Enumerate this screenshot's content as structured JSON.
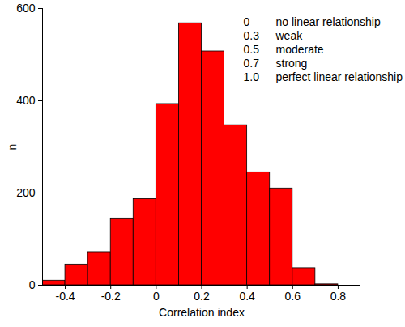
{
  "chart_data": {
    "type": "histogram",
    "x_label": "Correlation index",
    "y_label": "n",
    "bins": [
      -0.5,
      -0.4,
      -0.3,
      -0.2,
      -0.1,
      0,
      0.1,
      0.2,
      0.3,
      0.4,
      0.5,
      0.6,
      0.7,
      0.8
    ],
    "values": [
      10,
      45,
      72,
      145,
      187,
      393,
      568,
      507,
      347,
      245,
      210,
      37,
      2
    ],
    "color": "#ff0000",
    "xlim": [
      -0.5,
      0.9
    ],
    "xticks": [
      -0.4,
      -0.2,
      0,
      0.2,
      0.4,
      0.6,
      0.8
    ],
    "ylim": [
      0,
      600
    ],
    "yticks": [
      0,
      200,
      400,
      600
    ],
    "grid": false,
    "annotations": [
      [
        "0",
        "no linear relationship"
      ],
      [
        "0.3",
        "weak"
      ],
      [
        "0.5",
        "moderate"
      ],
      [
        "0.7",
        "strong"
      ],
      [
        "1.0",
        "perfect linear relationship"
      ]
    ]
  }
}
